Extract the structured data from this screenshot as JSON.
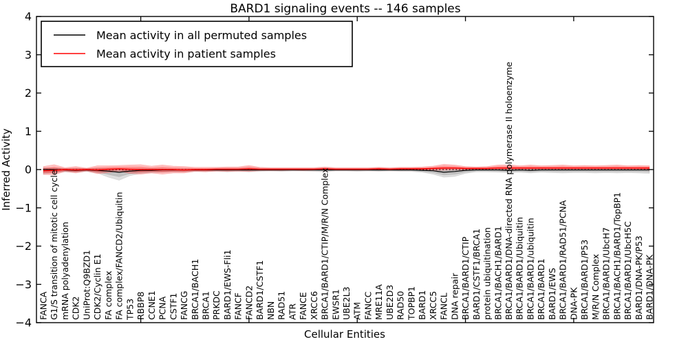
{
  "title": "BARD1 signaling events -- 146 samples",
  "legend": {
    "position": "upper-left",
    "items": [
      {
        "label": "Mean activity in all permuted samples",
        "color": "#000000"
      },
      {
        "label": "Mean activity in patient samples",
        "color": "#ff0000"
      }
    ]
  },
  "axes": {
    "xlabel": "Cellular Entities",
    "ylabel": "Inferred Activity",
    "ylim": [
      -4,
      4
    ],
    "ytick_values": [
      4,
      3,
      2,
      1,
      0,
      -1,
      -2,
      -3,
      -4
    ],
    "ytick_labels": [
      "4",
      "3",
      "2",
      "1",
      "0",
      "−1",
      "−2",
      "−3",
      "−4"
    ],
    "xtick_positions": [
      10,
      20,
      30,
      40,
      50
    ],
    "grid": false,
    "zero_line": "dotted"
  },
  "chart_data": {
    "type": "line",
    "title": "BARD1 signaling events -- 146 samples",
    "xlabel": "Cellular Entities",
    "ylabel": "Inferred Activity",
    "ylim": [
      -4,
      4
    ],
    "legend_position": "upper-left",
    "categories": [
      "FANCA",
      "G1/S transition of mitotic cell cycle",
      "mRNA polyadenylation",
      "CDK2",
      "UniProt:Q9BZD1",
      "CDK2/Cyclin E1",
      "FA complex",
      "FA complex/FANCD2/Ubiquitin",
      "TP53",
      "RBBP8",
      "CCNE1",
      "PCNA",
      "CSTF1",
      "FANCG",
      "BRCA1/BACH1",
      "BRCA1",
      "PRKDC",
      "BARD1/EWS-Fli1",
      "FANCF",
      "FANCD2",
      "BARD1/CSTF1",
      "NBN",
      "RAD51",
      "ATR",
      "FANCE",
      "XRCC6",
      "BRCA1/BARD1/CTIP/M/R/N Complex",
      "EWSR1",
      "UBE2L3",
      "ATM",
      "FANCC",
      "MRE11A",
      "UBE2D3",
      "RAD50",
      "TOPBP1",
      "BARD1",
      "XRCC5",
      "FANCL",
      "DNA repair",
      "BRCA1/BARD1/CTIP",
      "BARD1/CSTF1/BRCA1",
      "protein ubiquitination",
      "BRCA1/BACH1/BARD1",
      "BRCA1/BARD1/DNA-directed RNA polymerase II holoenzyme",
      "BRCA1/BARD1/Ubiquitin",
      "BRCA1/BARD1/ubiquitin",
      "BRCA1/BARD1",
      "BARD1/EWS",
      "BRCA1/BARD1/RAD51/PCNA",
      "DNA-PK",
      "BRCA1/BARD1/P53",
      "M/R/N Complex",
      "BRCA1/BARD1/UbcH7",
      "BRCA1/BACH1/BARD1/TopBP1",
      "BRCA1/BARD1/UbcH5C",
      "BARD1/DNA-PK/P53",
      "BARD1/DNA-PK"
    ],
    "series": [
      {
        "name": "Mean activity in all permuted samples",
        "color": "#000000",
        "values": [
          0.0,
          0.0,
          -0.01,
          -0.02,
          -0.01,
          -0.02,
          -0.04,
          -0.07,
          -0.04,
          -0.02,
          -0.02,
          -0.01,
          -0.01,
          -0.01,
          -0.01,
          -0.01,
          -0.01,
          -0.01,
          -0.01,
          -0.01,
          -0.01,
          -0.01,
          -0.01,
          -0.01,
          -0.01,
          -0.01,
          -0.01,
          -0.01,
          -0.01,
          -0.01,
          -0.01,
          -0.01,
          -0.01,
          -0.01,
          -0.01,
          -0.02,
          -0.03,
          -0.07,
          -0.05,
          -0.02,
          -0.01,
          -0.01,
          -0.01,
          -0.02,
          -0.01,
          -0.02,
          -0.01,
          -0.01,
          -0.01,
          -0.01,
          -0.01,
          -0.01,
          -0.01,
          -0.01,
          -0.01,
          -0.01,
          -0.01
        ],
        "band_lo": [
          -0.12,
          -0.08,
          -0.06,
          -0.07,
          -0.05,
          -0.09,
          -0.2,
          -0.28,
          -0.16,
          -0.1,
          -0.08,
          -0.07,
          -0.06,
          -0.06,
          -0.05,
          -0.05,
          -0.05,
          -0.06,
          -0.05,
          -0.06,
          -0.05,
          -0.04,
          -0.05,
          -0.04,
          -0.04,
          -0.05,
          -0.06,
          -0.04,
          -0.04,
          -0.05,
          -0.04,
          -0.05,
          -0.04,
          -0.05,
          -0.05,
          -0.07,
          -0.12,
          -0.2,
          -0.18,
          -0.1,
          -0.06,
          -0.06,
          -0.07,
          -0.08,
          -0.07,
          -0.09,
          -0.07,
          -0.08,
          -0.09,
          -0.08,
          -0.08,
          -0.09,
          -0.08,
          -0.09,
          -0.08,
          -0.09,
          -0.1
        ],
        "band_hi": [
          0.05,
          0.04,
          0.03,
          0.03,
          0.03,
          0.03,
          0.03,
          0.02,
          0.02,
          0.03,
          0.03,
          0.03,
          0.02,
          0.02,
          0.02,
          0.02,
          0.02,
          0.02,
          0.02,
          0.02,
          0.02,
          0.02,
          0.02,
          0.02,
          0.02,
          0.02,
          0.02,
          0.02,
          0.02,
          0.02,
          0.02,
          0.02,
          0.02,
          0.02,
          0.02,
          0.02,
          0.02,
          0.02,
          0.02,
          0.02,
          0.02,
          0.02,
          0.02,
          0.02,
          0.02,
          0.02,
          0.02,
          0.02,
          0.02,
          0.02,
          0.02,
          0.02,
          0.02,
          0.02,
          0.02,
          0.02,
          0.03
        ]
      },
      {
        "name": "Mean activity in patient samples",
        "color": "#ff0000",
        "values": [
          -0.03,
          -0.02,
          0.0,
          -0.01,
          0.0,
          -0.01,
          0.01,
          0.02,
          0.01,
          0.0,
          0.0,
          0.0,
          0.0,
          -0.01,
          0.0,
          0.0,
          0.01,
          0.01,
          0.01,
          0.02,
          0.01,
          0.01,
          0.01,
          0.01,
          0.01,
          0.01,
          0.02,
          0.01,
          0.01,
          0.01,
          0.01,
          0.02,
          0.01,
          0.02,
          0.02,
          0.02,
          0.03,
          0.04,
          0.04,
          0.03,
          0.03,
          0.03,
          0.04,
          0.04,
          0.04,
          0.04,
          0.04,
          0.04,
          0.04,
          0.04,
          0.04,
          0.04,
          0.04,
          0.04,
          0.04,
          0.04,
          0.04
        ],
        "band_lo": [
          -0.13,
          -0.14,
          -0.05,
          -0.09,
          -0.04,
          -0.11,
          -0.08,
          -0.04,
          -0.1,
          -0.12,
          -0.09,
          -0.12,
          -0.09,
          -0.09,
          -0.05,
          -0.06,
          -0.04,
          -0.05,
          -0.04,
          -0.05,
          -0.03,
          -0.03,
          -0.03,
          -0.02,
          -0.03,
          -0.02,
          -0.02,
          -0.02,
          -0.02,
          -0.02,
          -0.02,
          -0.02,
          -0.02,
          -0.02,
          -0.02,
          -0.02,
          -0.02,
          -0.02,
          -0.01,
          -0.01,
          0.0,
          0.0,
          0.0,
          0.0,
          0.0,
          0.0,
          0.0,
          0.0,
          0.0,
          0.0,
          0.0,
          0.0,
          0.0,
          0.0,
          0.0,
          -0.01,
          -0.02
        ],
        "band_hi": [
          0.08,
          0.13,
          0.05,
          0.08,
          0.04,
          0.1,
          0.1,
          0.11,
          0.12,
          0.13,
          0.09,
          0.12,
          0.09,
          0.08,
          0.06,
          0.06,
          0.06,
          0.07,
          0.07,
          0.11,
          0.06,
          0.05,
          0.05,
          0.05,
          0.05,
          0.05,
          0.07,
          0.05,
          0.05,
          0.05,
          0.05,
          0.06,
          0.05,
          0.06,
          0.06,
          0.07,
          0.09,
          0.14,
          0.12,
          0.08,
          0.07,
          0.08,
          0.12,
          0.13,
          0.1,
          0.12,
          0.1,
          0.11,
          0.12,
          0.1,
          0.11,
          0.1,
          0.11,
          0.12,
          0.1,
          0.11,
          0.1
        ]
      }
    ]
  }
}
